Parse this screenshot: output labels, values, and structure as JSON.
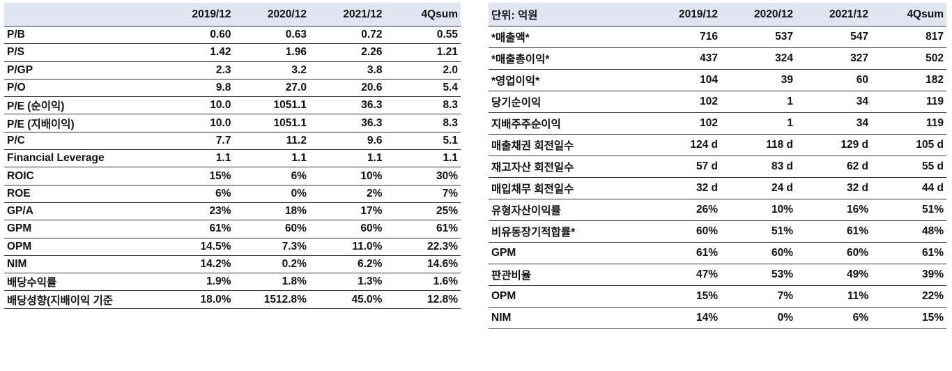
{
  "left_table": {
    "headers": [
      "",
      "2019/12",
      "2020/12",
      "2021/12",
      "4Qsum"
    ],
    "rows": [
      [
        "P/B",
        "0.60",
        "0.63",
        "0.72",
        "0.55"
      ],
      [
        "P/S",
        "1.42",
        "1.96",
        "2.26",
        "1.21"
      ],
      [
        "P/GP",
        "2.3",
        "3.2",
        "3.8",
        "2.0"
      ],
      [
        "P/O",
        "9.8",
        "27.0",
        "20.6",
        "5.4"
      ],
      [
        "P/E (순이익)",
        "10.0",
        "1051.1",
        "36.3",
        "8.3"
      ],
      [
        "P/E (지배이익)",
        "10.0",
        "1051.1",
        "36.3",
        "8.3"
      ],
      [
        "P/C",
        "7.7",
        "11.2",
        "9.6",
        "5.1"
      ],
      [
        "Financial Leverage",
        "1.1",
        "1.1",
        "1.1",
        "1.1"
      ],
      [
        "ROIC",
        "15%",
        "6%",
        "10%",
        "30%"
      ],
      [
        "ROE",
        "6%",
        "0%",
        "2%",
        "7%"
      ],
      [
        "GP/A",
        "23%",
        "18%",
        "17%",
        "25%"
      ],
      [
        "GPM",
        "61%",
        "60%",
        "60%",
        "61%"
      ],
      [
        "OPM",
        "14.5%",
        "7.3%",
        "11.0%",
        "22.3%"
      ],
      [
        "NIM",
        "14.2%",
        "0.2%",
        "6.2%",
        "14.6%"
      ],
      [
        "배당수익률",
        "1.9%",
        "1.8%",
        "1.3%",
        "1.6%"
      ],
      [
        "배당성향(지배이익 기준",
        "18.0%",
        "1512.8%",
        "45.0%",
        "12.8%"
      ]
    ]
  },
  "right_table": {
    "headers": [
      "단위: 억원",
      "2019/12",
      "2020/12",
      "2021/12",
      "4Qsum"
    ],
    "rows": [
      [
        "*매출액*",
        "716",
        "537",
        "547",
        "817"
      ],
      [
        "*매출총이익*",
        "437",
        "324",
        "327",
        "502"
      ],
      [
        "*영업이익*",
        "104",
        "39",
        "60",
        "182"
      ],
      [
        "당기순이익",
        "102",
        "1",
        "34",
        "119"
      ],
      [
        "지배주주순이익",
        "102",
        "1",
        "34",
        "119"
      ],
      [
        "매출채권 회전일수",
        "124 d",
        "118 d",
        "129 d",
        "105 d"
      ],
      [
        "재고자산 회전일수",
        "57 d",
        "83 d",
        "62 d",
        "55 d"
      ],
      [
        "매입채무 회전일수",
        "32 d",
        "24 d",
        "32 d",
        "44 d"
      ],
      [
        "유형자산이익률",
        "26%",
        "10%",
        "16%",
        "51%"
      ],
      [
        "비유동장기적합률*",
        "60%",
        "51%",
        "61%",
        "48%"
      ],
      [
        "GPM",
        "61%",
        "60%",
        "60%",
        "61%"
      ],
      [
        "판관비율",
        "47%",
        "53%",
        "49%",
        "39%"
      ],
      [
        "OPM",
        "15%",
        "7%",
        "11%",
        "22%"
      ],
      [
        "NIM",
        "14%",
        "0%",
        "6%",
        "15%"
      ]
    ]
  }
}
